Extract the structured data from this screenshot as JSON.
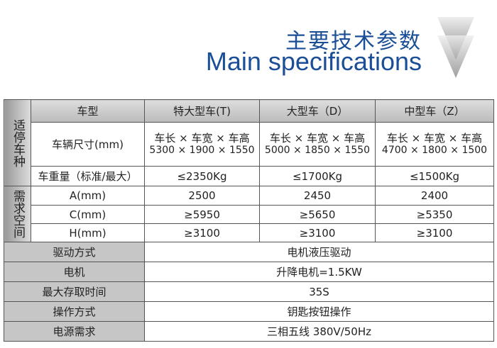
{
  "header": {
    "title_cn": "主要技术参数",
    "title_en": "Main specifications",
    "arrow_icon": "down-chevron-icon"
  },
  "table": {
    "group_vehicle": "适停车种",
    "group_space": "需求空间",
    "columns": [
      "车型",
      "特大型车(T)",
      "大型车（D）",
      "中型车（Z）"
    ],
    "size_label": "车辆尺寸(mm)",
    "size_header": [
      "车长 × 车宽 × 车高",
      "车长 × 车宽 × 车高",
      "车长 × 车宽 × 车高"
    ],
    "size_values": [
      "5300 × 1900 × 1550",
      "5000 × 1850 × 1550",
      "4700 × 1800 × 1500"
    ],
    "weight_label": "车重量（标准/最大）",
    "weight_values": [
      "≤2350Kg",
      "≤1700Kg",
      "≤1500Kg"
    ],
    "space_rows": [
      {
        "label": "A(mm)",
        "values": [
          "2500",
          "2450",
          "2400"
        ]
      },
      {
        "label": "C(mm)",
        "values": [
          "≥5950",
          "≥5650",
          "≥5350"
        ]
      },
      {
        "label": "H(mm)",
        "values": [
          "≥3100",
          "≥3100",
          "≥3100"
        ]
      }
    ],
    "common_rows": [
      {
        "label": "驱动方式",
        "value": "电机液压驱动"
      },
      {
        "label": "电机",
        "value": "升降电机=1.5KW"
      },
      {
        "label": "最大存取时间",
        "value": "35S"
      },
      {
        "label": "操作方式",
        "value": "钥匙按钮操作"
      },
      {
        "label": "电源需求",
        "value": "三相五线 380V/50Hz"
      }
    ]
  }
}
